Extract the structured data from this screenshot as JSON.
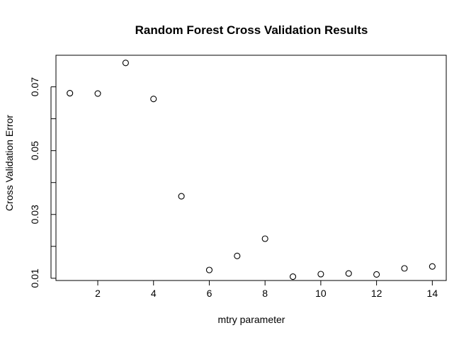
{
  "chart_data": {
    "type": "scatter",
    "title": "Random Forest Cross Validation Results",
    "xlabel": "mtry parameter",
    "ylabel": "Cross Validation Error",
    "xlim": [
      0.5,
      14.5
    ],
    "ylim": [
      0.0093,
      0.0799
    ],
    "xticks": [
      2,
      4,
      6,
      8,
      10,
      12,
      14
    ],
    "xtick_labels": [
      "2",
      "4",
      "6",
      "8",
      "10",
      "12",
      "14"
    ],
    "yticks": [
      0.01,
      0.02,
      0.03,
      0.04,
      0.05,
      0.06,
      0.07
    ],
    "ytick_labels": [
      "0.01",
      "",
      "0.03",
      "",
      "0.05",
      "",
      "0.07"
    ],
    "grid": false,
    "legend": "none",
    "x": [
      1,
      2,
      3,
      4,
      5,
      6,
      7,
      8,
      9,
      10,
      11,
      12,
      13,
      14
    ],
    "y": [
      0.068,
      0.0679,
      0.0775,
      0.0662,
      0.0357,
      0.0126,
      0.017,
      0.0224,
      0.0105,
      0.0113,
      0.0115,
      0.0112,
      0.0131,
      0.0137
    ]
  }
}
